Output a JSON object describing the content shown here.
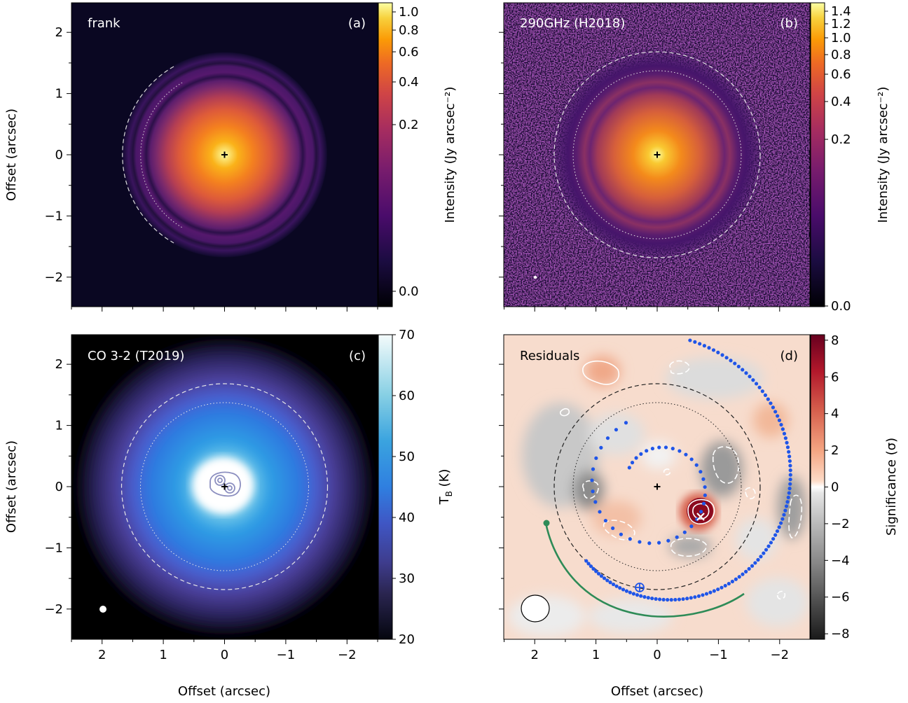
{
  "chart_data": [
    {
      "type": "heatmap",
      "label": "frank",
      "panel_tag": "(a)",
      "colormap": "inferno",
      "colorbar": {
        "label": "Intensity (Jy arcsec⁻²)",
        "ticks": [
          "1.0",
          "0.8",
          "0.6",
          "0.4",
          "0.2",
          "0.0"
        ]
      },
      "ylabel": "Offset (arcsec)",
      "xlabel": "",
      "xlim": [
        2.5,
        -2.5
      ],
      "ylim": [
        -2.5,
        2.5
      ],
      "rings_arcsec": [
        1.72,
        1.37
      ],
      "ring_styles": [
        "dashed",
        "dotted"
      ]
    },
    {
      "type": "heatmap",
      "label": "290GHz (H2018)",
      "panel_tag": "(b)",
      "colormap": "inferno",
      "colorbar": {
        "label": "Intensity (Jy arcsec⁻²)",
        "ticks": [
          "1.4",
          "1.2",
          "1.0",
          "0.8",
          "0.6",
          "0.4",
          "0.2",
          "0.0"
        ]
      },
      "xlim": [
        2.5,
        -2.5
      ],
      "ylim": [
        -2.5,
        2.5
      ],
      "rings_arcsec": [
        1.68,
        1.38
      ],
      "ring_styles": [
        "dashed",
        "dotted"
      ]
    },
    {
      "type": "heatmap",
      "label": "CO 3-2 (T2019)",
      "panel_tag": "(c)",
      "colormap": "ice",
      "colorbar": {
        "label": "T",
        "label_sub": "B",
        "label_unit": " (K)",
        "ticks": [
          "70",
          "60",
          "50",
          "40",
          "30",
          "20"
        ],
        "range": [
          20,
          70
        ]
      },
      "ylabel": "Offset (arcsec)",
      "xlabel": "Offset (arcsec)",
      "xlim": [
        2.5,
        -2.5
      ],
      "ylim": [
        -2.5,
        2.5
      ],
      "rings_arcsec": [
        1.68,
        1.38
      ],
      "ring_styles": [
        "dashed",
        "dotted"
      ]
    },
    {
      "type": "heatmap",
      "label": "Residuals",
      "panel_tag": "(d)",
      "colormap": "RdGy_r",
      "colorbar": {
        "label": "Significance (σ)",
        "ticks": [
          "8",
          "6",
          "4",
          "2",
          "0",
          "−2",
          "−4",
          "−6",
          "−8"
        ],
        "range": [
          -8.3,
          8.3
        ]
      },
      "xlabel": "Offset (arcsec)",
      "xlim": [
        2.5,
        -2.5
      ],
      "ylim": [
        -2.5,
        2.5
      ],
      "rings_arcsec": [
        1.68,
        1.38
      ],
      "ring_styles": [
        "dashed",
        "dotted"
      ],
      "point_source": {
        "x": -0.72,
        "y": -0.45,
        "marker": "x"
      },
      "planet_marker": {
        "x": 0.28,
        "y": -1.65,
        "marker": "circled-plus"
      }
    }
  ],
  "x_ticks": [
    "2",
    "1",
    "0",
    "−1",
    "−2"
  ],
  "y_ticks": [
    "2",
    "1",
    "0",
    "−1",
    "−2"
  ],
  "colors": {
    "spiral": "#1f55e8",
    "arc": "#2e8b57",
    "positive": "#b2182b",
    "negative": "#555555",
    "co_contours": "#8c8fc0"
  }
}
